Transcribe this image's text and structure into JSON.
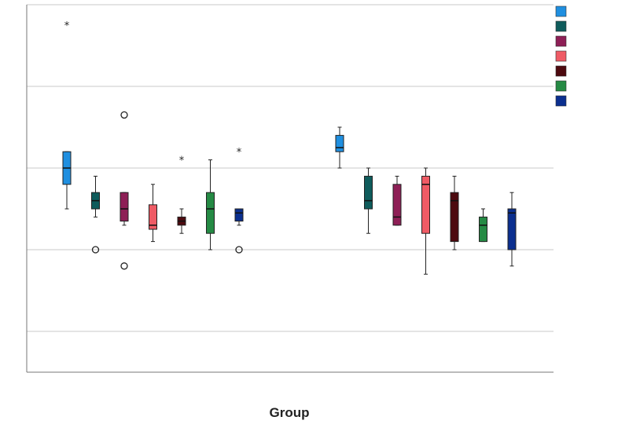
{
  "chart_data": {
    "type": "boxplot",
    "title": "",
    "xlabel": "Group",
    "ylabel": "",
    "ylim": [
      0,
      4.5
    ],
    "grid_y": [
      0.5,
      1.5,
      2.5,
      3.5,
      4.5
    ],
    "grid": true,
    "legend_position": "top-right",
    "series_colors": [
      "#1f8fe0",
      "#0f5c5c",
      "#8e1f56",
      "#ef5b65",
      "#4d0a0f",
      "#258a44",
      "#0b2f8f"
    ],
    "groups": [
      {
        "boxes": [
          {
            "series": 0,
            "whisker_low": 2.0,
            "q1": 2.3,
            "median": 2.5,
            "q3": 2.7,
            "whisker_high": 2.7,
            "outliers": [
              {
                "value": 4.25,
                "marker": "star"
              }
            ]
          },
          {
            "series": 1,
            "whisker_low": 1.9,
            "q1": 2.0,
            "median": 2.1,
            "q3": 2.2,
            "whisker_high": 2.4,
            "outliers": [
              {
                "value": 1.5,
                "marker": "circle"
              }
            ]
          },
          {
            "series": 2,
            "whisker_low": 1.8,
            "q1": 1.85,
            "median": 2.0,
            "q3": 2.2,
            "whisker_high": 2.2,
            "outliers": [
              {
                "value": 3.15,
                "marker": "circle"
              },
              {
                "value": 1.3,
                "marker": "circle"
              }
            ]
          },
          {
            "series": 3,
            "whisker_low": 1.6,
            "q1": 1.75,
            "median": 1.8,
            "q3": 2.05,
            "whisker_high": 2.3,
            "outliers": []
          },
          {
            "series": 4,
            "whisker_low": 1.7,
            "q1": 1.8,
            "median": 1.85,
            "q3": 1.9,
            "whisker_high": 2.0,
            "outliers": [
              {
                "value": 2.6,
                "marker": "star"
              }
            ]
          },
          {
            "series": 5,
            "whisker_low": 1.5,
            "q1": 1.7,
            "median": 2.0,
            "q3": 2.2,
            "whisker_high": 2.6,
            "outliers": []
          },
          {
            "series": 6,
            "whisker_low": 1.8,
            "q1": 1.85,
            "median": 1.95,
            "q3": 2.0,
            "whisker_high": 2.0,
            "outliers": [
              {
                "value": 2.7,
                "marker": "star"
              },
              {
                "value": 1.5,
                "marker": "circle"
              }
            ]
          }
        ]
      },
      {
        "boxes": [
          {
            "series": 0,
            "whisker_low": 2.5,
            "q1": 2.7,
            "median": 2.75,
            "q3": 2.9,
            "whisker_high": 3.0,
            "outliers": []
          },
          {
            "series": 1,
            "whisker_low": 1.7,
            "q1": 2.0,
            "median": 2.1,
            "q3": 2.4,
            "whisker_high": 2.5,
            "outliers": []
          },
          {
            "series": 2,
            "whisker_low": 1.8,
            "q1": 1.8,
            "median": 1.9,
            "q3": 2.3,
            "whisker_high": 2.4,
            "outliers": []
          },
          {
            "series": 3,
            "whisker_low": 1.2,
            "q1": 1.7,
            "median": 2.3,
            "q3": 2.4,
            "whisker_high": 2.5,
            "outliers": []
          },
          {
            "series": 4,
            "whisker_low": 1.5,
            "q1": 1.6,
            "median": 2.1,
            "q3": 2.2,
            "whisker_high": 2.4,
            "outliers": []
          },
          {
            "series": 5,
            "whisker_low": 1.6,
            "q1": 1.6,
            "median": 1.8,
            "q3": 1.9,
            "whisker_high": 2.0,
            "outliers": []
          },
          {
            "series": 6,
            "whisker_low": 1.3,
            "q1": 1.5,
            "median": 1.95,
            "q3": 2.0,
            "whisker_high": 2.2,
            "outliers": []
          }
        ]
      }
    ]
  }
}
